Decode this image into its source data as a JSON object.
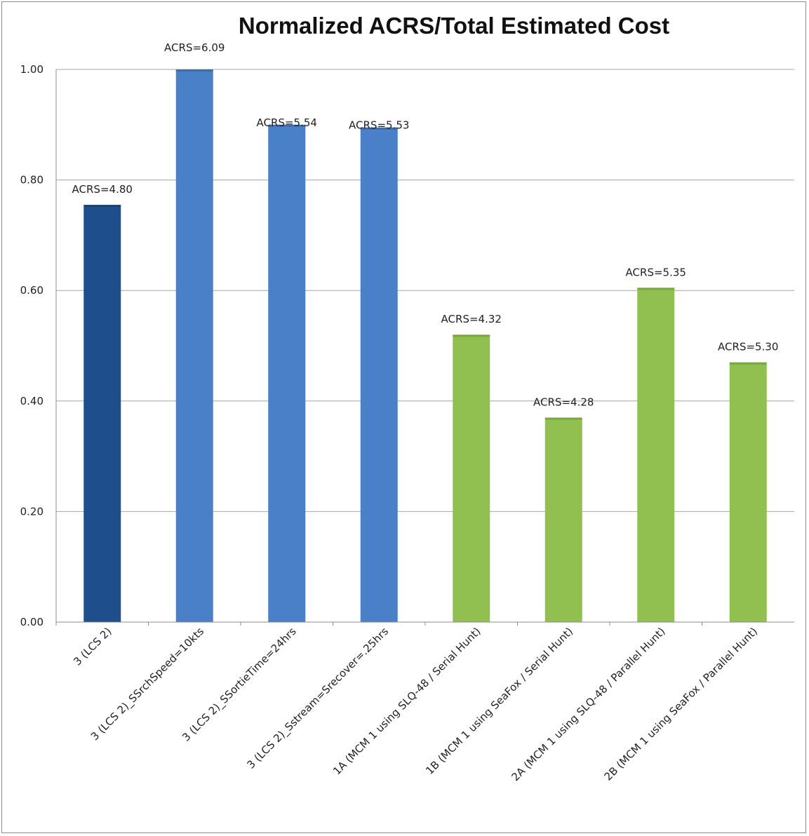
{
  "chart_data": {
    "type": "bar",
    "title": "Normalized ACRS/Total Estimated Cost",
    "xlabel": "",
    "ylabel": "",
    "ylim": [
      0,
      1.0
    ],
    "yticks": [
      "0.00",
      "0.20",
      "0.40",
      "0.60",
      "0.80",
      "1.00"
    ],
    "grid": true,
    "legend": "none",
    "categories": [
      "3 (LCS 2)",
      "3 (LCS 2)_SSrchSpeed=10kts",
      "3 (LCS 2)_SSortieTime=24hrs",
      "3 (LCS 2)_Sstream=Srecover=.25hrs",
      "1A (MCM 1 using SLQ-48 / Serial Hunt)",
      "1B (MCM 1 using SeaFox / Serial Hunt)",
      "2A (MCM 1 using SLQ-48 / Parallel Hunt)",
      "2B (MCM 1 using SeaFox / Parallel Hunt)"
    ],
    "values": [
      0.755,
      1.0,
      0.9,
      0.895,
      0.52,
      0.37,
      0.605,
      0.47
    ],
    "data_labels": [
      "ACRS=4.80",
      "ACRS=6.09",
      "ACRS=5.54",
      "ACRS=5.53",
      "ACRS=4.32",
      "ACRS=4.28",
      "ACRS=5.35",
      "ACRS=5.30"
    ],
    "colors": [
      "#1f4e8c",
      "#4a80c8",
      "#4a80c8",
      "#4a80c8",
      "#92c050",
      "#92c050",
      "#92c050",
      "#92c050"
    ]
  }
}
